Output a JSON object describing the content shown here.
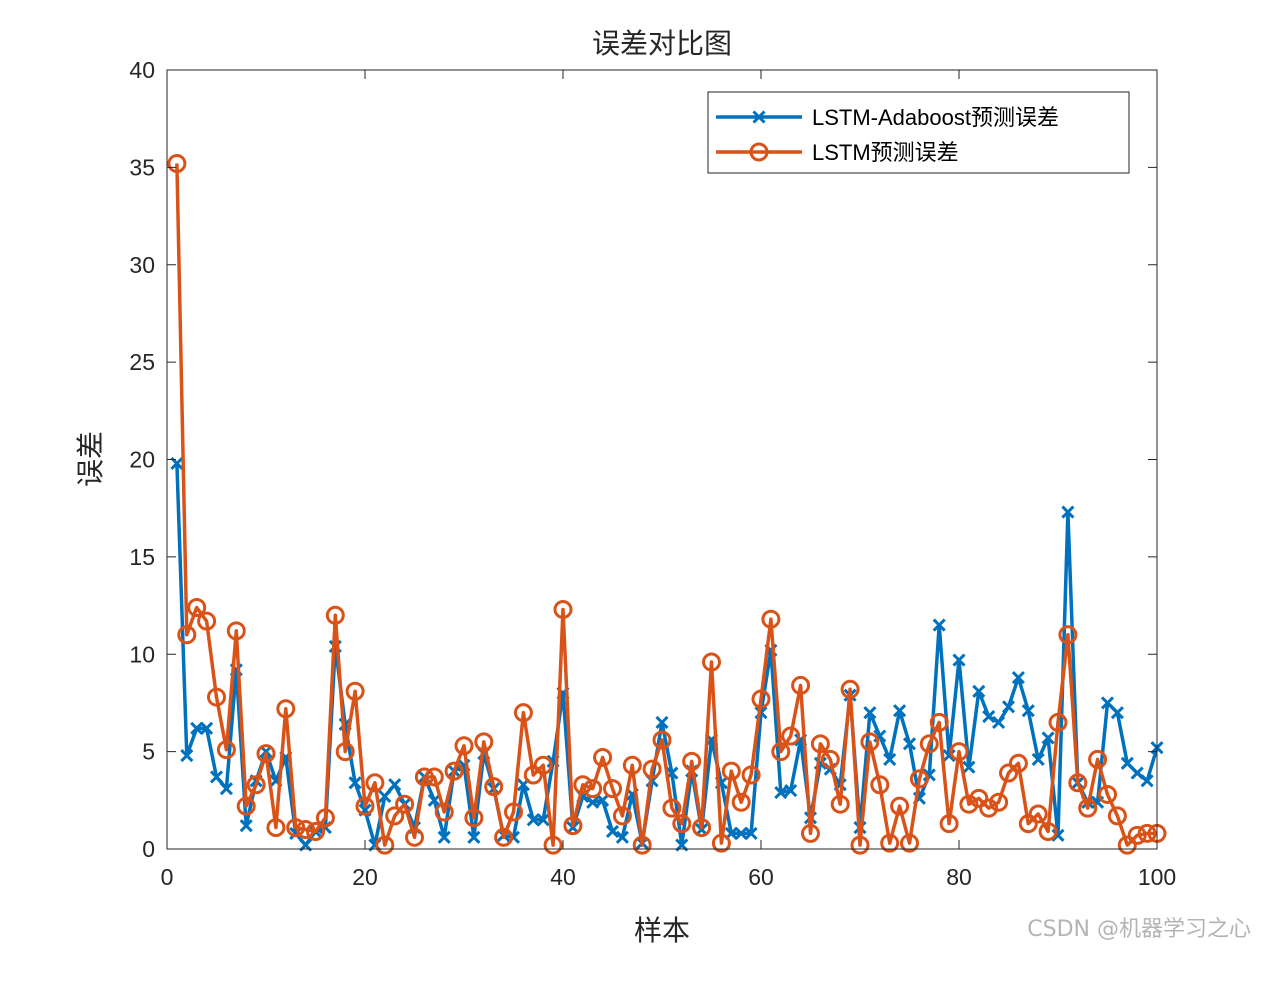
{
  "chart_data": {
    "type": "line",
    "title": "误差对比图",
    "xlabel": "样本",
    "ylabel": "误差",
    "xlim": [
      0,
      100
    ],
    "ylim": [
      0,
      40
    ],
    "xticks": [
      0,
      20,
      40,
      60,
      80,
      100
    ],
    "yticks": [
      0,
      5,
      10,
      15,
      20,
      25,
      30,
      35,
      40
    ],
    "grid": false,
    "legend_position": "top-right",
    "x": [
      1,
      2,
      3,
      4,
      5,
      6,
      7,
      8,
      9,
      10,
      11,
      12,
      13,
      14,
      15,
      16,
      17,
      18,
      19,
      20,
      21,
      22,
      23,
      24,
      25,
      26,
      27,
      28,
      29,
      30,
      31,
      32,
      33,
      34,
      35,
      36,
      37,
      38,
      39,
      40,
      41,
      42,
      43,
      44,
      45,
      46,
      47,
      48,
      49,
      50,
      51,
      52,
      53,
      54,
      55,
      56,
      57,
      58,
      59,
      60,
      61,
      62,
      63,
      64,
      65,
      66,
      67,
      68,
      69,
      70,
      71,
      72,
      73,
      74,
      75,
      76,
      77,
      78,
      79,
      80,
      81,
      82,
      83,
      84,
      85,
      86,
      87,
      88,
      89,
      90,
      91,
      92,
      93,
      94,
      95,
      96,
      97,
      98,
      99,
      100
    ],
    "series": [
      {
        "name": "LSTM-Adaboost预测误差",
        "color": "#0072BD",
        "marker": "x",
        "values": [
          19.8,
          4.8,
          6.2,
          6.2,
          3.7,
          3.1,
          9.2,
          1.2,
          3.5,
          5.0,
          3.5,
          4.7,
          0.8,
          0.2,
          0.9,
          1.1,
          10.4,
          6.4,
          3.4,
          2.0,
          0.2,
          2.7,
          3.3,
          2.3,
          1.1,
          3.7,
          2.5,
          0.6,
          4.0,
          4.3,
          0.6,
          4.9,
          3.1,
          0.7,
          0.6,
          3.3,
          1.5,
          1.5,
          4.5,
          8.0,
          1.1,
          2.7,
          2.4,
          2.5,
          0.9,
          0.6,
          2.8,
          0.3,
          3.5,
          6.5,
          3.9,
          0.2,
          4.0,
          1.0,
          5.6,
          3.4,
          0.8,
          0.8,
          0.8,
          7.0,
          10.2,
          2.9,
          3.0,
          5.6,
          1.6,
          4.4,
          4.1,
          3.3,
          7.9,
          1.1,
          7.0,
          5.8,
          4.6,
          7.1,
          5.4,
          2.6,
          3.8,
          11.5,
          4.8,
          9.7,
          4.2,
          8.1,
          6.8,
          6.5,
          7.3,
          8.8,
          7.1,
          4.6,
          5.7,
          0.7,
          17.3,
          3.4,
          2.4,
          2.4,
          7.5,
          7.0,
          4.4,
          3.9,
          3.5,
          5.2
        ]
      },
      {
        "name": "LSTM预测误差",
        "color": "#D95319",
        "marker": "o",
        "values": [
          35.2,
          11.0,
          12.4,
          11.7,
          7.8,
          5.1,
          11.2,
          2.2,
          3.3,
          4.9,
          1.1,
          7.2,
          1.1,
          1.0,
          0.9,
          1.6,
          12.0,
          5.0,
          8.1,
          2.2,
          3.4,
          0.2,
          1.7,
          2.3,
          0.6,
          3.7,
          3.7,
          1.9,
          4.0,
          5.3,
          1.6,
          5.5,
          3.2,
          0.6,
          1.9,
          7.0,
          3.8,
          4.3,
          0.2,
          12.3,
          1.2,
          3.3,
          3.1,
          4.7,
          3.1,
          1.7,
          4.3,
          0.2,
          4.1,
          5.6,
          2.1,
          1.3,
          4.5,
          1.1,
          9.6,
          0.3,
          4.0,
          2.4,
          3.8,
          7.7,
          11.8,
          5.0,
          5.8,
          8.4,
          0.8,
          5.4,
          4.6,
          2.3,
          8.2,
          0.2,
          5.5,
          3.3,
          0.3,
          2.2,
          0.3,
          3.6,
          5.4,
          6.5,
          1.3,
          5.0,
          2.3,
          2.6,
          2.1,
          2.4,
          3.9,
          4.4,
          1.3,
          1.8,
          0.9,
          6.5,
          11.0,
          3.4,
          2.1,
          4.6,
          2.8,
          1.7,
          0.2,
          0.7,
          0.8,
          0.8
        ]
      }
    ]
  },
  "watermark": "CSDN @机器学习之心"
}
